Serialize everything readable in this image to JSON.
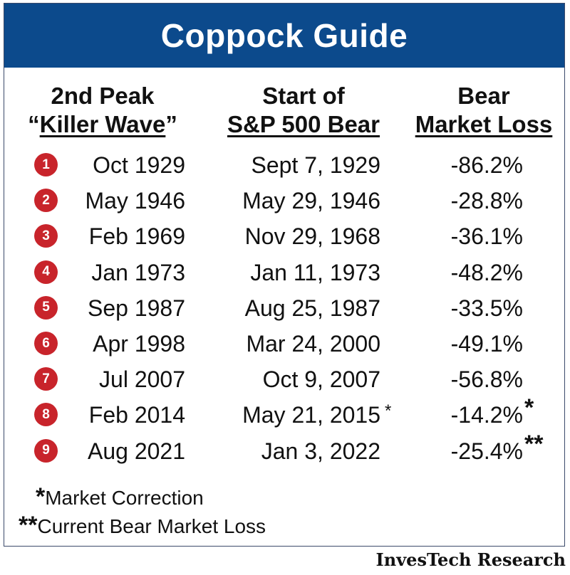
{
  "chart_data": {
    "type": "table",
    "title": "Coppock Guide",
    "columns": [
      {
        "line1": "2nd Peak",
        "line2_prefix": "“",
        "line2": "Killer Wave",
        "line2_suffix": "”"
      },
      {
        "line1": "Start of",
        "line2": "S&P 500 Bear"
      },
      {
        "line1": "Bear",
        "line2": "Market Loss"
      }
    ],
    "rows": [
      {
        "num": "1",
        "peak": "Oct  1929",
        "start": "Sept 7, 1929",
        "loss": "-86.2%",
        "start_mark": "",
        "loss_mark": ""
      },
      {
        "num": "2",
        "peak": "May 1946",
        "start": "May 29, 1946",
        "loss": "-28.8%",
        "start_mark": "",
        "loss_mark": ""
      },
      {
        "num": "3",
        "peak": "Feb 1969",
        "start": "Nov 29, 1968",
        "loss": "-36.1%",
        "start_mark": "",
        "loss_mark": ""
      },
      {
        "num": "4",
        "peak": "Jan  1973",
        "start": "Jan 11, 1973",
        "loss": "-48.2%",
        "start_mark": "",
        "loss_mark": ""
      },
      {
        "num": "5",
        "peak": "Sep 1987",
        "start": "Aug 25, 1987",
        "loss": "-33.5%",
        "start_mark": "",
        "loss_mark": ""
      },
      {
        "num": "6",
        "peak": "Apr 1998",
        "start": "Mar 24, 2000",
        "loss": "-49.1%",
        "start_mark": "",
        "loss_mark": ""
      },
      {
        "num": "7",
        "peak": "Jul 2007",
        "start": "Oct 9, 2007",
        "loss": "-56.8%",
        "start_mark": "",
        "loss_mark": ""
      },
      {
        "num": "8",
        "peak": "Feb 2014",
        "start": "May 21, 2015",
        "loss": "-14.2%",
        "start_mark": "*",
        "loss_mark": "*"
      },
      {
        "num": "9",
        "peak": "Aug 2021",
        "start": "Jan 3, 2022",
        "loss": "-25.4%",
        "start_mark": "",
        "loss_mark": "**"
      }
    ],
    "footnotes": [
      {
        "mark": "*",
        "text": "Market Correction"
      },
      {
        "mark": "**",
        "text": "Current Bear Market Loss"
      }
    ],
    "credit": "InvesTech Research"
  },
  "colors": {
    "title_bar": "#0c4a8c",
    "badge": "#c8242b",
    "border": "#3b4a6a"
  }
}
